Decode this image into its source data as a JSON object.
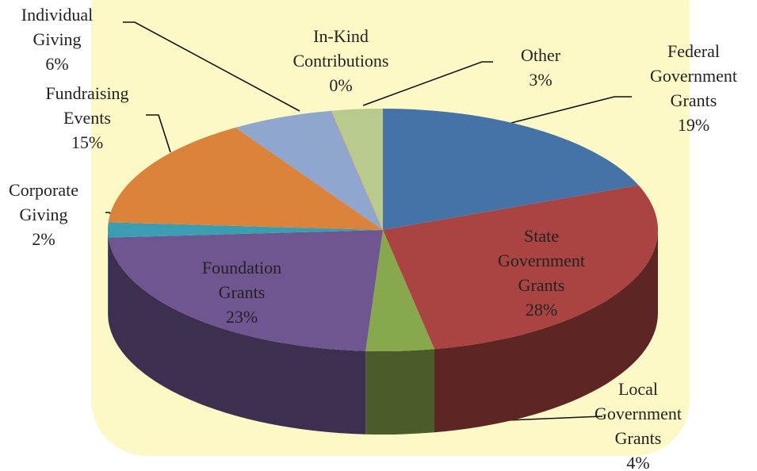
{
  "chart_data": {
    "type": "pie3d",
    "categories": [
      "Federal Government Grants",
      "State Government Grants",
      "Local Government Grants",
      "Foundation Grants",
      "Corporate Giving",
      "Fundraising Events",
      "Individual Giving",
      "In-Kind Contributions",
      "Other"
    ],
    "values": [
      19,
      28,
      4,
      23,
      2,
      15,
      6,
      0,
      3
    ],
    "value_labels": [
      "19%",
      "28%",
      "4%",
      "23%",
      "2%",
      "15%",
      "6%",
      "0%",
      "3%"
    ],
    "colors": [
      "#4572a7",
      "#a94442",
      "#87a84c",
      "#6f5690",
      "#3a9db2",
      "#db833a",
      "#8fa6cf",
      "#dc9694",
      "#b8cb8d"
    ]
  }
}
